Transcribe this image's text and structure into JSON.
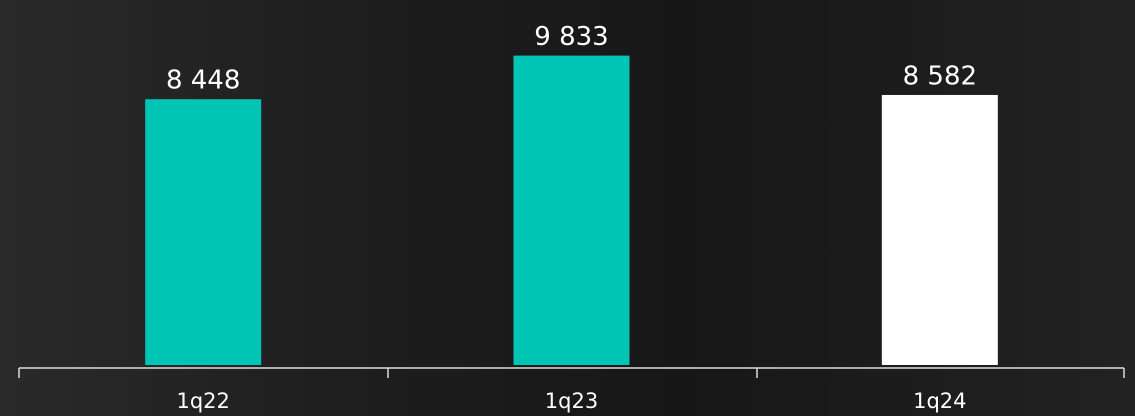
{
  "chart_data": {
    "type": "bar",
    "categories": [
      "1q22",
      "1q23",
      "1q24"
    ],
    "values": [
      8448,
      9833,
      8582
    ],
    "value_labels": [
      "8 448",
      "9 833",
      "8 582"
    ],
    "colors": [
      "#00c4b4",
      "#00c4b4",
      "#ffffff"
    ],
    "ylim": [
      0,
      11600
    ]
  }
}
